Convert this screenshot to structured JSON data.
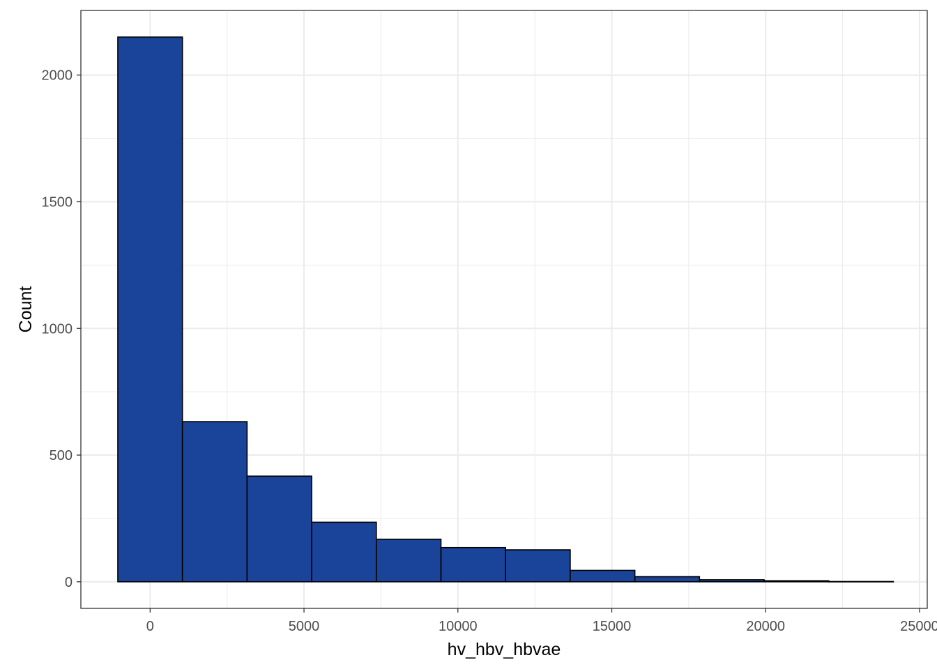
{
  "chart_data": {
    "type": "bar",
    "title": "",
    "xlabel": "hv_hbv_hbvae",
    "ylabel": "Count",
    "bin_width": 2100,
    "bins": [
      {
        "x_start": -1050,
        "x_end": 1050,
        "count": 2150
      },
      {
        "x_start": 1050,
        "x_end": 3150,
        "count": 632
      },
      {
        "x_start": 3150,
        "x_end": 5250,
        "count": 417
      },
      {
        "x_start": 5250,
        "x_end": 7350,
        "count": 235
      },
      {
        "x_start": 7350,
        "x_end": 9450,
        "count": 168
      },
      {
        "x_start": 9450,
        "x_end": 11550,
        "count": 135
      },
      {
        "x_start": 11550,
        "x_end": 13650,
        "count": 126
      },
      {
        "x_start": 13650,
        "x_end": 15750,
        "count": 45
      },
      {
        "x_start": 15750,
        "x_end": 17850,
        "count": 20
      },
      {
        "x_start": 17850,
        "x_end": 19950,
        "count": 8
      },
      {
        "x_start": 19950,
        "x_end": 22050,
        "count": 4
      },
      {
        "x_start": 22050,
        "x_end": 24150,
        "count": 1
      }
    ],
    "xlim": [
      -2250,
      25250
    ],
    "ylim": [
      -105,
      2255
    ],
    "x_ticks": [
      0,
      5000,
      10000,
      15000,
      20000,
      25000
    ],
    "x_tick_labels": [
      "0",
      "5000",
      "10000",
      "15000",
      "20000",
      "25000"
    ],
    "y_ticks": [
      0,
      500,
      1000,
      1500,
      2000
    ],
    "y_tick_labels": [
      "0",
      "500",
      "1000",
      "1500",
      "2000"
    ],
    "x_minor_ticks": [
      2500,
      7500,
      12500,
      17500,
      22500
    ],
    "y_minor_ticks": [
      250,
      750,
      1250,
      1750
    ],
    "grid": true,
    "colors": {
      "bar_fill": "#1A4499",
      "bar_outline": "#000000",
      "grid": "#EBEBEB",
      "panel_border": "#333333",
      "tick_text": "#4D4D4D"
    }
  }
}
